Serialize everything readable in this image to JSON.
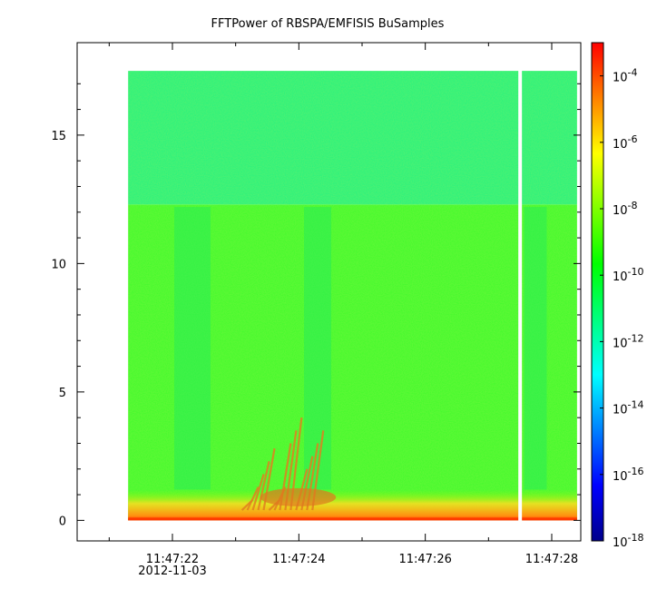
{
  "chart_data": {
    "type": "heatmap",
    "title": "FFTPower of RBSPA/EMFISIS  BuSamples",
    "xlabel": "",
    "ylabel": "",
    "x_tick_labels": [
      "11:47:22",
      "11:47:24",
      "11:47:26",
      "11:47:28"
    ],
    "x_date_label": "2012-11-03",
    "x_range_seconds_of_minute": [
      47.4,
      48.41
    ],
    "y_ticks": [
      0,
      5,
      10,
      15
    ],
    "ylim": [
      -0.8,
      18.6
    ],
    "data_x_range": [
      "11:47:21.3",
      "11:47:28.4"
    ],
    "data_y_range": [
      0,
      17.5
    ],
    "data_gap_at": "11:47:27.5",
    "colorbar": {
      "scale": "log",
      "range": [
        1e-18,
        0.001
      ],
      "tick_base": "10",
      "tick_exponents": [
        "-4",
        "-6",
        "-8",
        "-10",
        "-12",
        "-14",
        "-16",
        "-18"
      ],
      "colormap": [
        "#00008b",
        "#0000ff",
        "#0080ff",
        "#00ffff",
        "#00ff80",
        "#00ff00",
        "#80ff00",
        "#ffff00",
        "#ff8000",
        "#ff0000"
      ]
    },
    "grid": false,
    "features": [
      {
        "kind": "band",
        "y_range": [
          0,
          12.3
        ],
        "level": 1.5e-10,
        "color": "#3dfa2a"
      },
      {
        "kind": "band",
        "y_range": [
          12.3,
          17.5
        ],
        "level": 5e-12,
        "color": "#22f27e"
      },
      {
        "kind": "low_freq_band",
        "y_range": [
          0,
          1.2
        ],
        "level": 1e-08,
        "color": "#f4e020"
      },
      {
        "kind": "chorus_rising_tones",
        "x_range": [
          "11:47:23.1",
          "11:47:24.3"
        ],
        "y_range": [
          0.2,
          4.5
        ],
        "color": "#e08020"
      }
    ]
  }
}
